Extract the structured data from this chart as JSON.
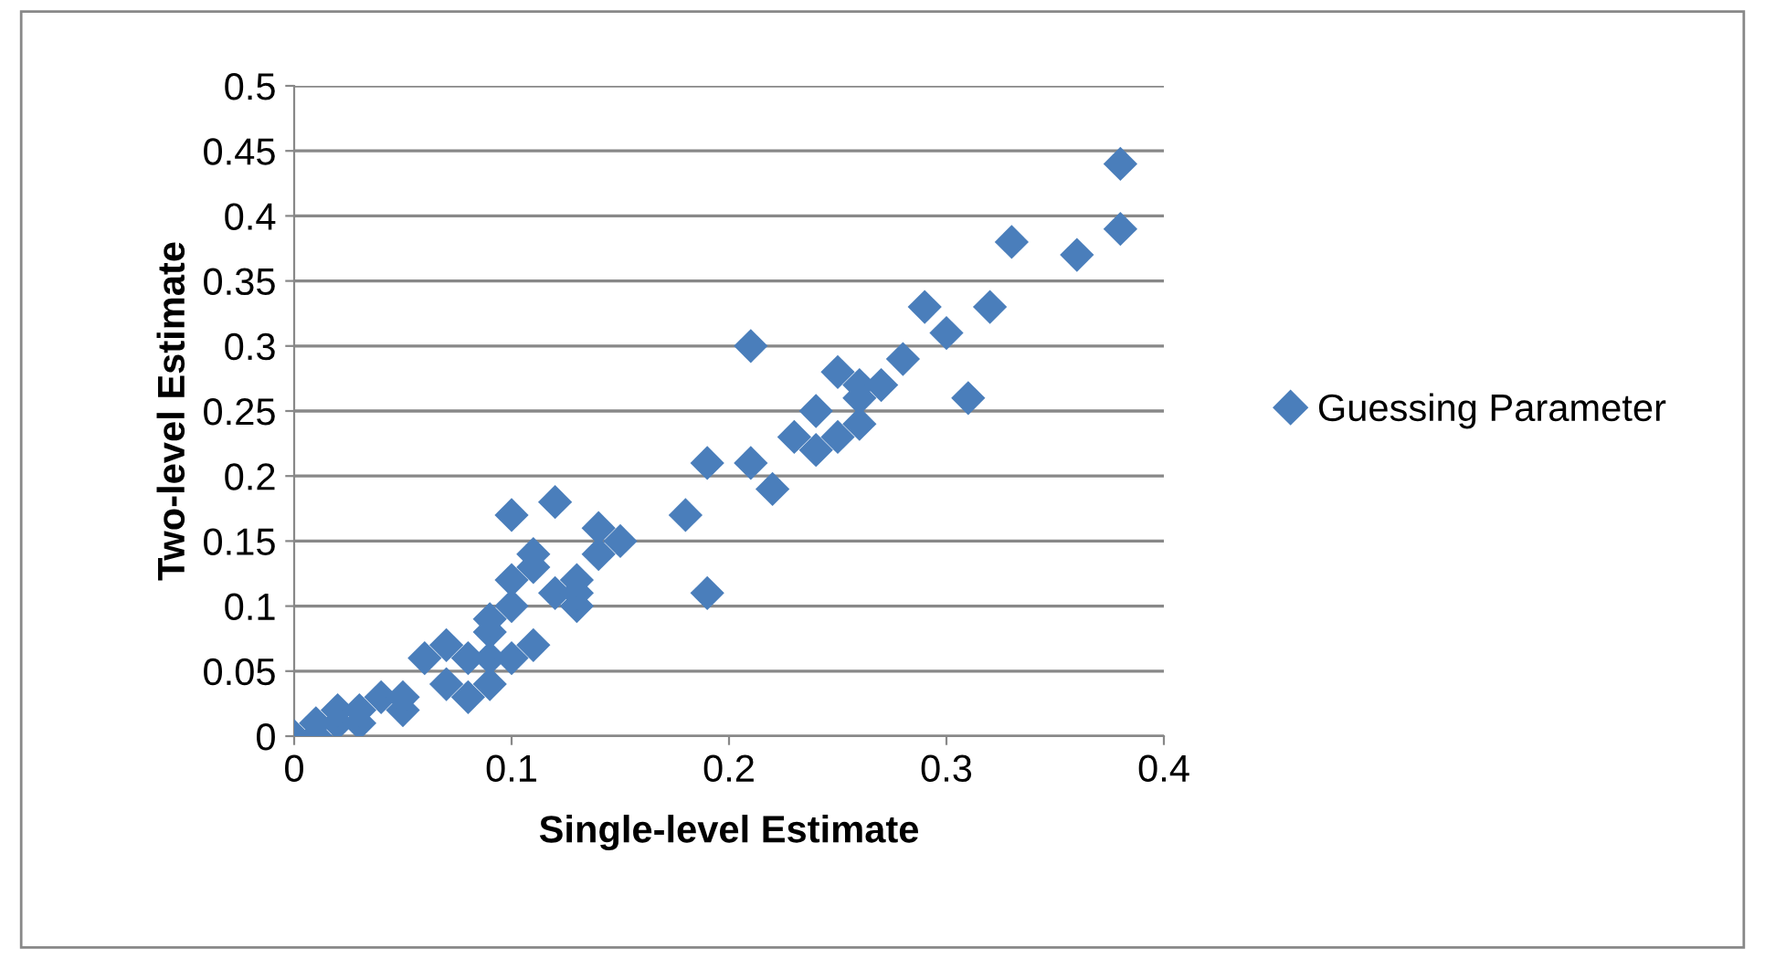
{
  "chart_data": {
    "type": "scatter",
    "xlabel": "Single-level Estimate",
    "ylabel": "Two-level Estimate",
    "xlim": [
      0,
      0.4
    ],
    "xticks": [
      0,
      0.1,
      0.2,
      0.3,
      0.4
    ],
    "ylim": [
      0,
      0.5
    ],
    "yticks": [
      0,
      0.05,
      0.1,
      0.15,
      0.2,
      0.25,
      0.3,
      0.35,
      0.4,
      0.45,
      0.5
    ],
    "grid": "y",
    "legend": "right",
    "marker": "diamond",
    "series": [
      {
        "name": "Guessing Parameter",
        "color": "#4a7ebb",
        "x": [
          0,
          0.01,
          0.01,
          0.02,
          0.02,
          0.03,
          0.03,
          0.04,
          0.05,
          0.05,
          0.06,
          0.07,
          0.07,
          0.08,
          0.08,
          0.09,
          0.09,
          0.09,
          0.09,
          0.1,
          0.1,
          0.1,
          0.1,
          0.11,
          0.11,
          0.11,
          0.12,
          0.12,
          0.13,
          0.13,
          0.13,
          0.14,
          0.14,
          0.15,
          0.18,
          0.19,
          0.19,
          0.21,
          0.21,
          0.22,
          0.23,
          0.24,
          0.24,
          0.25,
          0.25,
          0.26,
          0.26,
          0.26,
          0.27,
          0.28,
          0.29,
          0.3,
          0.31,
          0.32,
          0.33,
          0.36,
          0.38,
          0.38
        ],
        "values": [
          0,
          0,
          0.01,
          0.01,
          0.02,
          0.01,
          0.02,
          0.03,
          0.02,
          0.03,
          0.06,
          0.04,
          0.07,
          0.03,
          0.06,
          0.04,
          0.06,
          0.08,
          0.09,
          0.06,
          0.1,
          0.17,
          0.12,
          0.07,
          0.13,
          0.14,
          0.11,
          0.18,
          0.1,
          0.11,
          0.12,
          0.14,
          0.16,
          0.15,
          0.17,
          0.21,
          0.11,
          0.3,
          0.21,
          0.19,
          0.23,
          0.22,
          0.25,
          0.23,
          0.28,
          0.24,
          0.26,
          0.27,
          0.27,
          0.29,
          0.33,
          0.31,
          0.26,
          0.33,
          0.38,
          0.37,
          0.39,
          0.44
        ]
      }
    ]
  }
}
